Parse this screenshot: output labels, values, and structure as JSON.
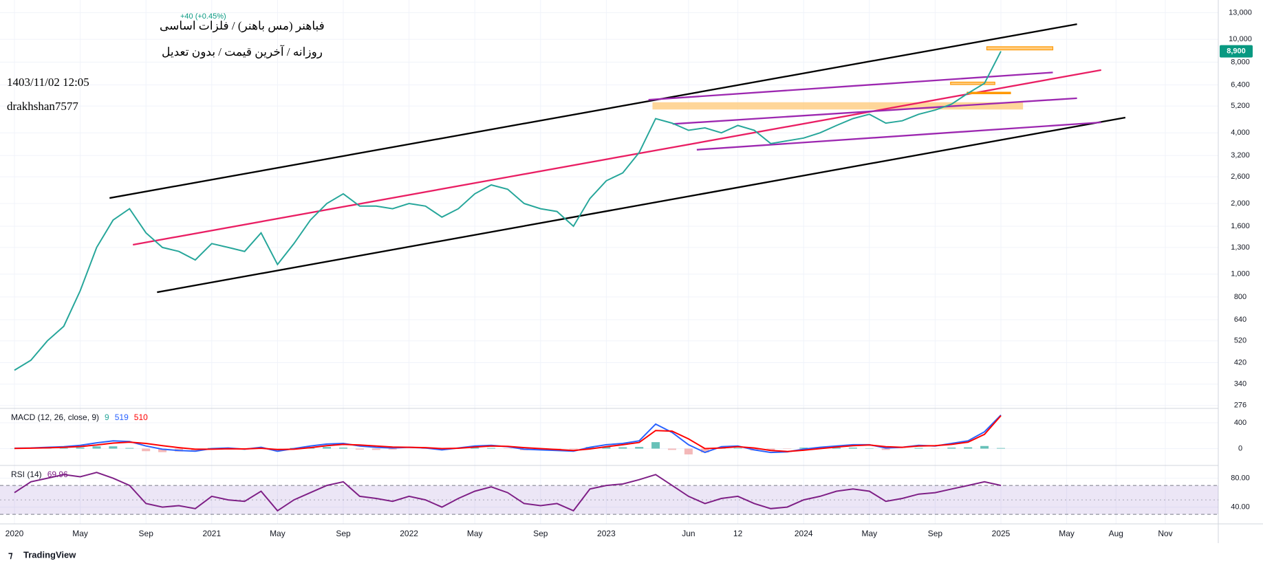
{
  "chart_data": [
    {
      "type": "line",
      "title": "فباهنر (مس باهنر) / فلزات اساسی",
      "subtitle": "روزانه / آخرین قیمت / بدون تعدیل",
      "annotations": [
        "1403/11/02 12:05",
        "drakhshan7577"
      ],
      "legend_text": "+40 (+0.45%)",
      "log_scale": true,
      "grid": true,
      "categories": [
        "2020",
        null,
        null,
        null,
        "May",
        null,
        null,
        null,
        "Sep",
        null,
        null,
        null,
        "2021",
        null,
        null,
        null,
        "May",
        null,
        null,
        null,
        "Sep",
        null,
        null,
        null,
        "2022",
        null,
        null,
        null,
        "May",
        null,
        null,
        null,
        "Sep",
        null,
        null,
        null,
        "2023",
        null,
        null,
        null,
        null,
        "Jun",
        null,
        null,
        "12",
        null,
        null,
        null,
        "2024",
        null,
        null,
        null,
        "May",
        null,
        null,
        null,
        "Sep",
        null,
        null,
        null,
        "2025",
        null,
        null,
        null,
        "May",
        null,
        null,
        "Aug",
        null,
        null,
        "Nov"
      ],
      "series": [
        {
          "color": "#26a69a",
          "values": [
            390,
            430,
            520,
            600,
            850,
            1300,
            1700,
            1900,
            1500,
            1300,
            1250,
            1150,
            1350,
            1300,
            1250,
            1500,
            1100,
            1350,
            1700,
            2000,
            2200,
            1950,
            1950,
            1900,
            2000,
            1950,
            1750,
            1900,
            2200,
            2400,
            2300,
            2000,
            1900,
            1850,
            1600,
            2100,
            2500,
            2700,
            3300,
            4600,
            4400,
            4100,
            4200,
            4000,
            4300,
            4100,
            3600,
            3700,
            3800,
            4000,
            4300,
            4600,
            4800,
            4400,
            4500,
            4800,
            5000,
            5300,
            5900,
            6500,
            8900,
            null,
            null,
            null,
            null,
            null,
            null,
            null,
            null,
            null,
            null
          ]
        }
      ],
      "ylim": [
        270,
        13850
      ],
      "yticks": [
        {
          "value": 13000,
          "label": "13,000"
        },
        {
          "value": 10000,
          "label": "10,000"
        },
        {
          "value": 8000,
          "label": "8,000"
        },
        {
          "value": 6400,
          "label": "6,400"
        },
        {
          "value": 5200,
          "label": "5,200"
        },
        {
          "value": 4000,
          "label": "4,000"
        },
        {
          "value": 3200,
          "label": "3,200"
        },
        {
          "value": 2600,
          "label": "2,600"
        },
        {
          "value": 2000,
          "label": "2,000"
        },
        {
          "value": 1600,
          "label": "1,600"
        },
        {
          "value": 1300,
          "label": "1,300"
        },
        {
          "value": 1000,
          "label": "1,000"
        },
        800,
        640,
        520,
        420,
        340,
        276
      ],
      "last_price": {
        "value": 8900,
        "label": "8,900",
        "color": "#089981"
      }
    },
    {
      "type": "line",
      "title": "MACD (12, 26, close, 9)",
      "legend_values": [
        9,
        519,
        510
      ],
      "series": [
        {
          "color": "#26a69a",
          "kind": "histogram",
          "values": [
            2,
            4,
            8,
            10,
            18,
            35,
            35,
            10,
            -40,
            -55,
            -45,
            -30,
            10,
            12,
            -5,
            15,
            -25,
            10,
            25,
            25,
            15,
            -15,
            -20,
            -15,
            0,
            -5,
            -20,
            5,
            15,
            10,
            -5,
            -25,
            -20,
            -15,
            -10,
            25,
            30,
            20,
            25,
            100,
            -20,
            -90,
            -60,
            20,
            10,
            -30,
            -30,
            -5,
            15,
            20,
            15,
            15,
            5,
            -20,
            0,
            10,
            -5,
            15,
            20,
            40,
            9
          ]
        },
        {
          "color": "#2962ff",
          "values": [
            5,
            10,
            20,
            30,
            50,
            90,
            120,
            110,
            40,
            -10,
            -30,
            -40,
            0,
            10,
            -10,
            20,
            -40,
            0,
            40,
            70,
            80,
            40,
            20,
            10,
            20,
            10,
            -20,
            10,
            40,
            50,
            30,
            -10,
            -20,
            -30,
            -40,
            20,
            60,
            80,
            120,
            380,
            250,
            60,
            -60,
            30,
            40,
            -20,
            -60,
            -50,
            -10,
            20,
            40,
            60,
            60,
            10,
            20,
            50,
            40,
            80,
            120,
            260,
            519
          ]
        },
        {
          "color": "#ff0000",
          "values": [
            3,
            6,
            12,
            20,
            32,
            55,
            85,
            100,
            80,
            45,
            15,
            -10,
            -10,
            -2,
            -5,
            5,
            -15,
            -10,
            15,
            45,
            65,
            55,
            40,
            25,
            20,
            15,
            0,
            5,
            25,
            40,
            35,
            15,
            0,
            -15,
            -30,
            -5,
            30,
            60,
            95,
            280,
            270,
            150,
            0,
            10,
            30,
            10,
            -30,
            -45,
            -25,
            0,
            25,
            45,
            55,
            30,
            20,
            40,
            45,
            65,
            100,
            220,
            510
          ]
        }
      ],
      "ylim": [
        -250,
        612
      ],
      "yticks": [
        400,
        0
      ]
    },
    {
      "type": "line",
      "title": "RSI (14)",
      "legend_values": [
        69.96
      ],
      "band": [
        30,
        70
      ],
      "midline": 50,
      "series": [
        {
          "color": "#7e1f86",
          "values": [
            60,
            75,
            80,
            85,
            82,
            88,
            80,
            70,
            45,
            40,
            42,
            38,
            55,
            50,
            48,
            62,
            35,
            50,
            60,
            70,
            75,
            55,
            52,
            48,
            55,
            50,
            40,
            52,
            62,
            68,
            60,
            45,
            42,
            45,
            35,
            65,
            70,
            72,
            78,
            85,
            70,
            55,
            45,
            52,
            55,
            45,
            38,
            40,
            50,
            55,
            62,
            65,
            62,
            48,
            52,
            58,
            60,
            65,
            70,
            75,
            69.96
          ]
        }
      ],
      "ylim": [
        17.8,
        96.7
      ],
      "yticks": [
        {
          "value": 80,
          "label": "80.00"
        },
        {
          "value": 40,
          "label": "40.00"
        }
      ]
    }
  ],
  "footer": "TradingView"
}
